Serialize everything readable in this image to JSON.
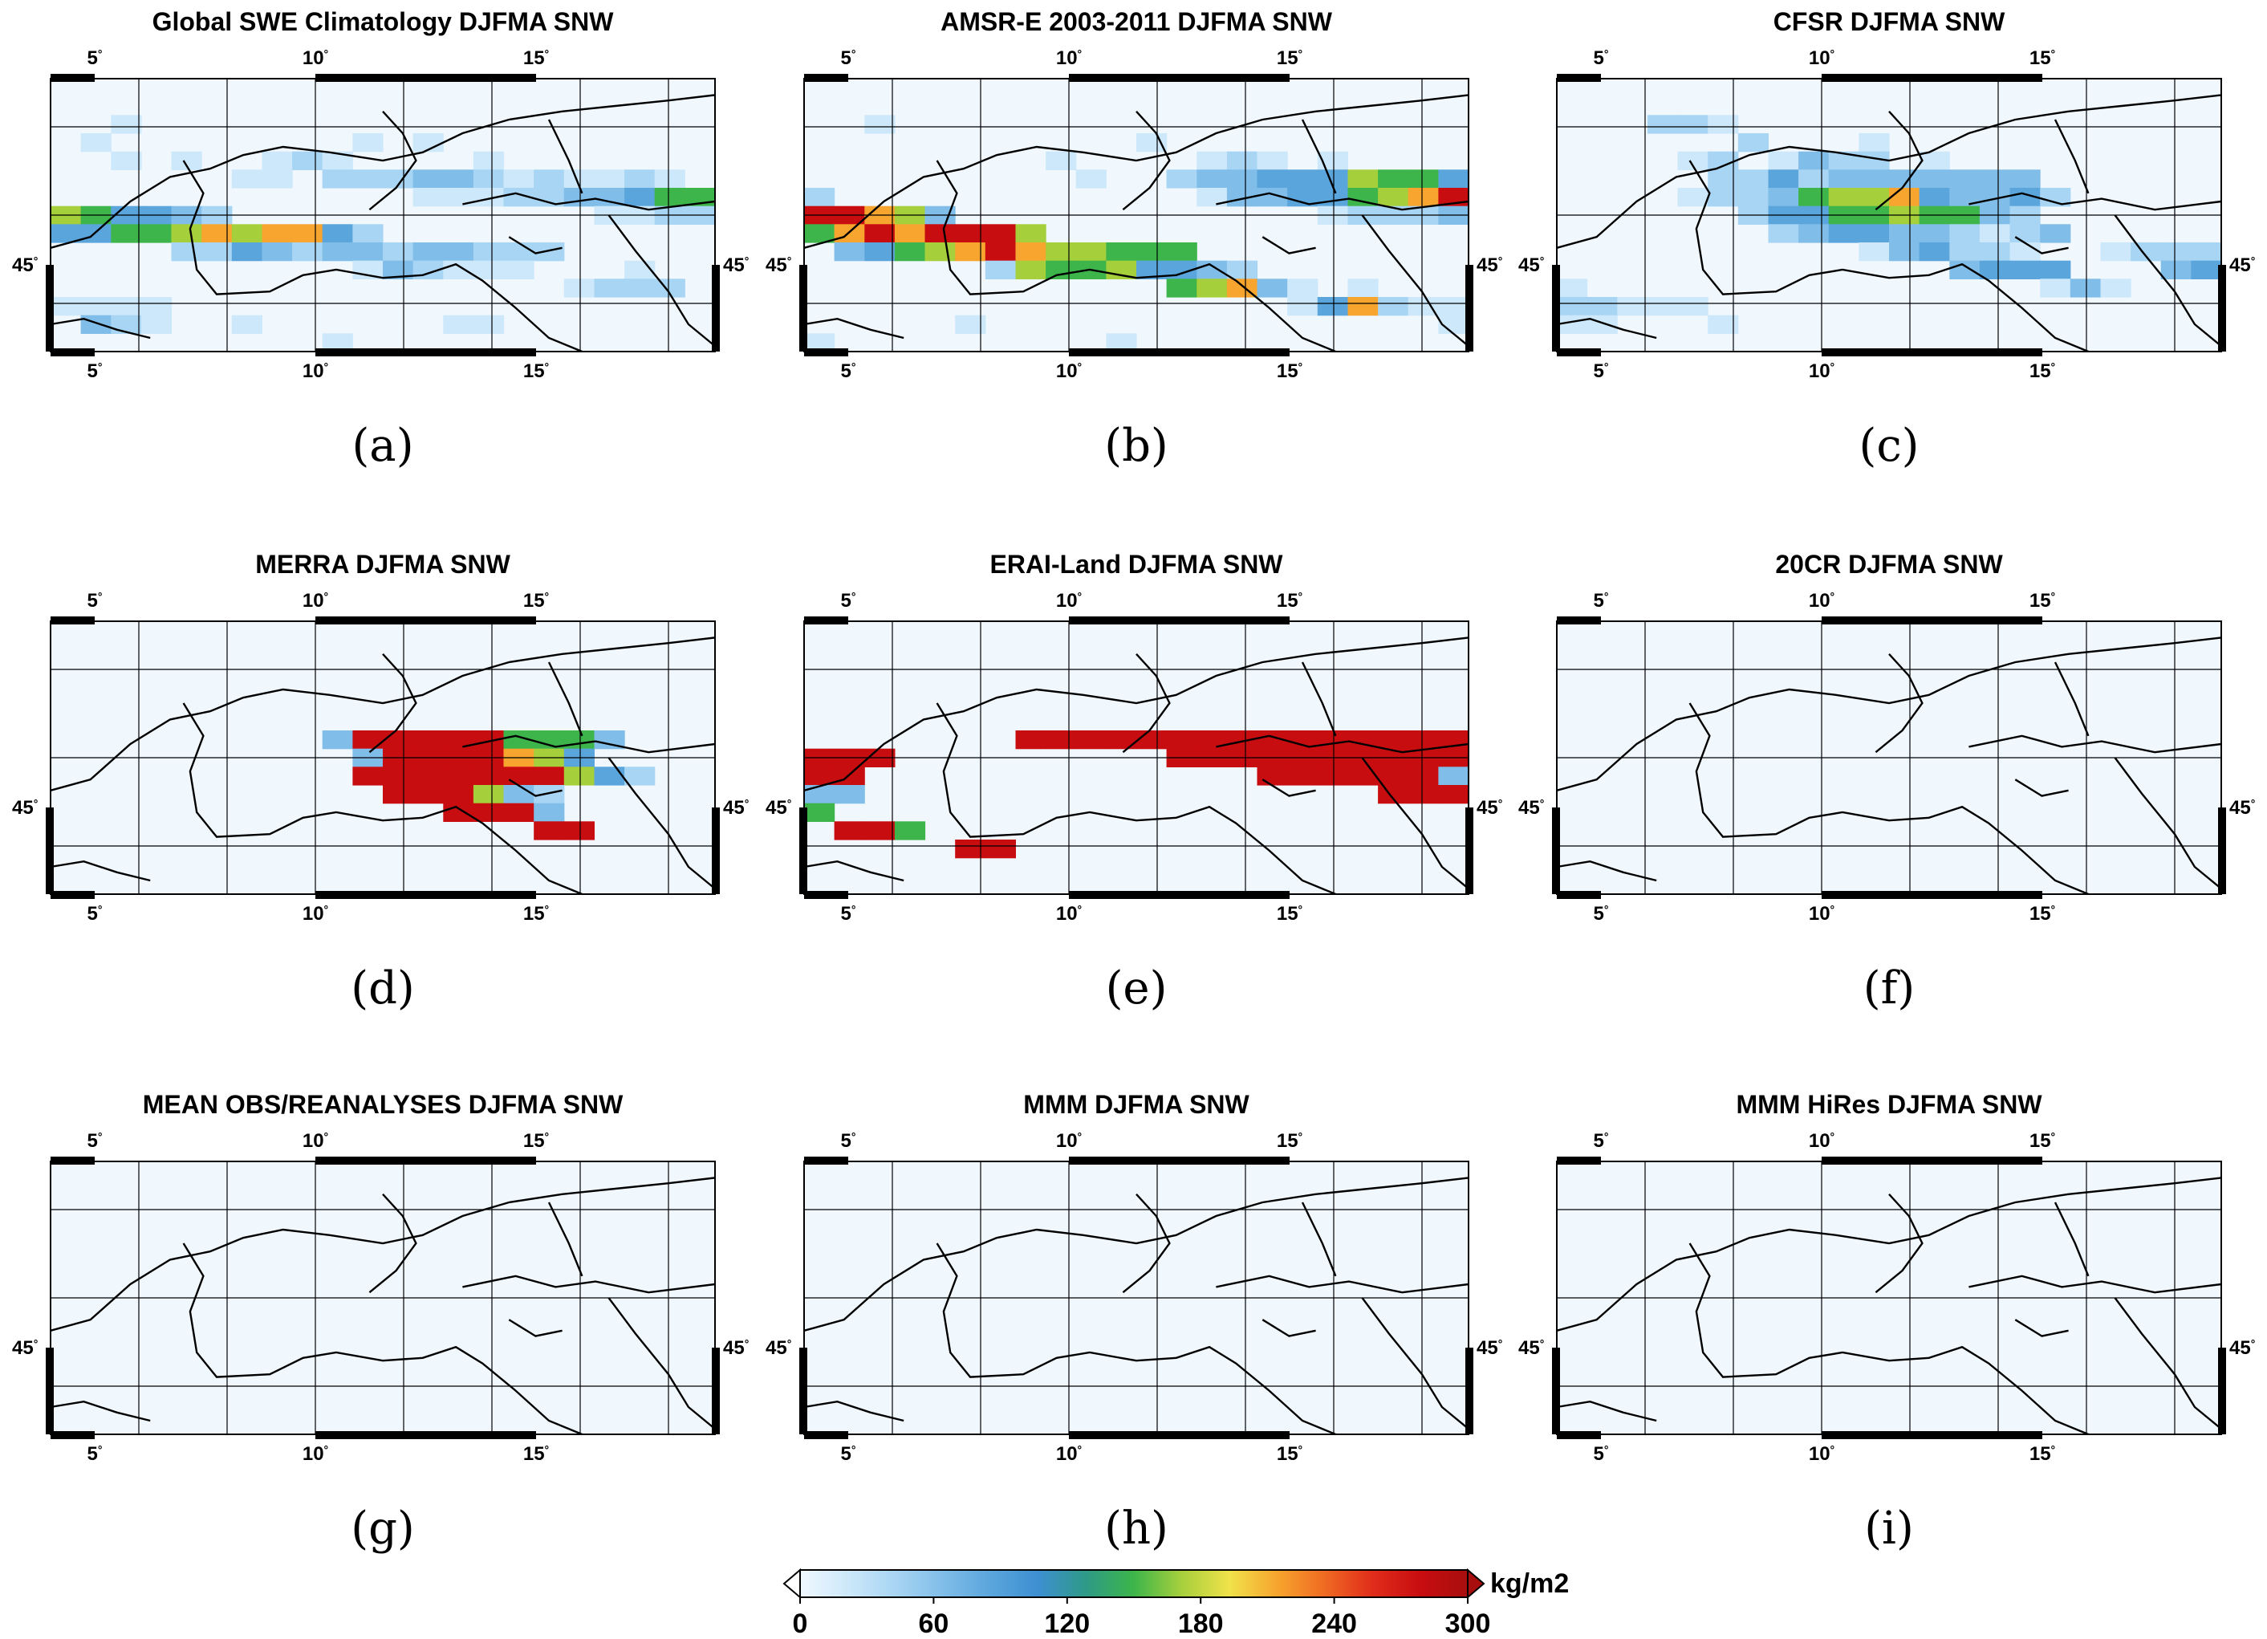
{
  "panels": [
    {
      "title": "Global SWE Climatology DJFMA SNW",
      "label": "(a)",
      "cells": "0000000000000000000000000000000000000000000000100000000000000000000100000000101000000000001010012100001000000000000011022233212112100000000000001112233455654432000000000000112244556767742000000000000000224323323322200000000000000013211100010000000000000000000122201111000000000000000000032100100000011000000000000000010000000000001000000000000000001000000000000000000000000000000000000000000000000"
    },
    {
      "title": "AMSR-E 2003-2011 DJFMA SNW",
      "label": "(b)",
      "cells": "0000000000000000000000000000000000000000000000100000000000000000000000000000010000000000000000001000012101000000000000010023344465542000000000000133445678887630000000000001222357878886000000000000000345678766555000000000000000265564432000000000000000000056731010000000000000000000147211000001000000000000000110000000001000000000000000000000000000000000000000000000000000000000000000000000000000"
    },
    {
      "title": "CFSR DJFMA SNW",
      "label": "(c)",
      "cells": "0000000000000000000000000000000000000000000000022100000000000000000000002000100000000000000012013220100000000000000224233333330000000000122356674334200000000000244556553200000000000002344332123000000000000000134221001222000000000000034440003410000000000000001310002211100000000000000000110001000000000000000000000000000000000000000000000000000000000000000000000000000000"
    },
    {
      "title": "MERRA DJFMA SNW",
      "label": "(d)",
      "cells": "0000000000000000000000000000000000000000000000000000000000000000000000000000000000000000000000000000000000000000000000000000000000000000000003888885553000000000000038888764000000000000008888888642000000000000088863200000000000000000088830000000000000000000008800000000000000000000000000000000000000000000000000000000000000000000000"
    },
    {
      "title": "ERAI-Land DJFMA SNW",
      "label": "(e)",
      "cells": "0000000000000000000000000000000000000000000000000000000000000000000000000000000000000000000000000000000000000000000000000000000000000000000888888888888888888000000000888888888888000000000000088888833300000000000000000888500000000000000000000008850000000000000000000000088000000000000000000000000000000000000000000000000000000000000000000000"
    },
    {
      "title": "20CR DJFMA SNW",
      "label": "(f)",
      "cells": "0000000000000000000000000000000000000000000000000000000000000000000000000000000000000000000000000000000000000000000000000000000000000000000000000000000000000000000000000000000000000000000000000000000000000000000000000000000000000000000000000000000000000000000000000000000000000000000000000000000000000000000000000000000000000000000000"
    },
    {
      "title": "MEAN OBS/REANALYSES DJFMA SNW",
      "label": "(g)",
      "cells": "0000000000000000000000000000000000000000000000000000000000000000000000000000000000000000000000000000000000000000000000000000000000000000000000000000000000000000000000000000000000000000000000000000000000000000000000000000000000000000000000000000000000000000000000000000000000000000000000000000000000000000000000000000000000000000000000"
    },
    {
      "title": "MMM DJFMA SNW",
      "label": "(h)",
      "cells": "0000000000000000000000000000000000000000000000000000000000000000000000000000000000000000000000000000000000000000000000000000000000000000000000000000000000000000000000000000000000000000000000000000000000000000000000000000000000000000000000000000000000000000000000000000000000000000000000000000000000000000000000000000000000000000000000"
    },
    {
      "title": "MMM HiRes DJFMA SNW",
      "label": "(i)",
      "cells": "0000000000000000000000000000000000000000000000000000000000000000000000000000000000000000000000000000000000000000000000000000000000000000000000000000000000000000000000000000000000000000000000000000000000000000000000000000000000000000000000000000000000000000000000000000000000000000000000000000000000000000000000000000000000000000000000"
    }
  ],
  "lon_ticks": [
    "5",
    "10",
    "15"
  ],
  "lat_tick": "45",
  "degree_sign": "°",
  "colorbar": {
    "ticks": [
      "0",
      "60",
      "120",
      "180",
      "240",
      "300"
    ],
    "unit": "kg/m2",
    "min": 0,
    "max": 300,
    "colors": [
      "#f0f8fe",
      "#cde8fa",
      "#a8d5f3",
      "#80bde8",
      "#5aa5dc",
      "#3d8fd1",
      "#2f9a86",
      "#3db54a",
      "#a6cf3c",
      "#f0e24a",
      "#f7a52e",
      "#ef6a22",
      "#e02d1b",
      "#c80d10",
      "#a80e0e"
    ]
  },
  "colors": {
    "cell_palette": [
      "#f0f8fe",
      "#cde8fa",
      "#a8d5f3",
      "#80bde8",
      "#5aa5dc",
      "#3db54a",
      "#a6cf3c",
      "#f7a52e",
      "#c80d10"
    ],
    "coast": "#000000",
    "grid": "#000000"
  }
}
